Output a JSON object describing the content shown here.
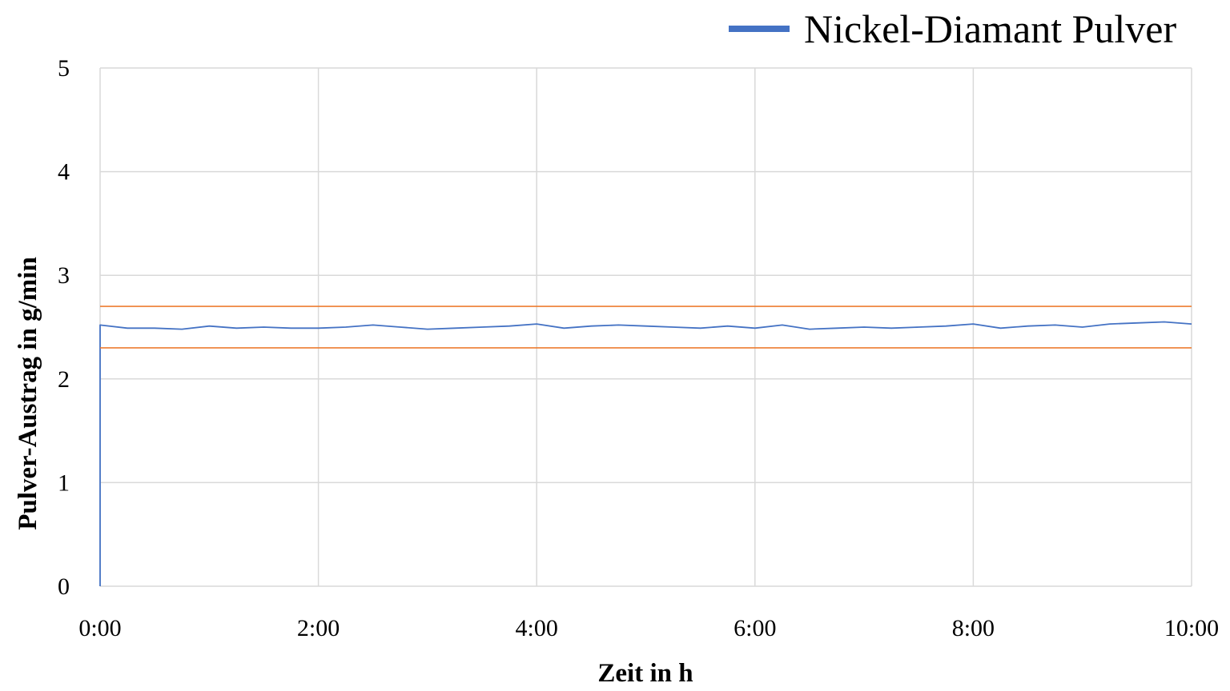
{
  "chart_data": {
    "type": "line",
    "title": "",
    "xlabel": "Zeit in h",
    "ylabel": "Pulver-Austrag in g/min",
    "x_unit": "h:mm",
    "xlim": [
      0,
      10
    ],
    "ylim": [
      0,
      5
    ],
    "x_ticks": [
      "0:00",
      "2:00",
      "4:00",
      "6:00",
      "8:00",
      "10:00"
    ],
    "y_ticks": [
      "0",
      "1",
      "2",
      "3",
      "4",
      "5"
    ],
    "grid": true,
    "legend_position": "top-right",
    "series": [
      {
        "name": "Nickel-Diamant Pulver",
        "color": "#4472C4",
        "x": [
          "0:00",
          "0:15",
          "0:30",
          "0:45",
          "1:00",
          "1:15",
          "1:30",
          "1:45",
          "2:00",
          "2:15",
          "2:30",
          "2:45",
          "3:00",
          "3:15",
          "3:30",
          "3:45",
          "4:00",
          "4:15",
          "4:30",
          "4:45",
          "5:00",
          "5:15",
          "5:30",
          "5:45",
          "6:00",
          "6:15",
          "6:30",
          "6:45",
          "7:00",
          "7:15",
          "7:30",
          "7:45",
          "8:00",
          "8:15",
          "8:30",
          "8:45",
          "9:00",
          "9:15",
          "9:30",
          "9:45",
          "10:00"
        ],
        "y": [
          2.52,
          2.49,
          2.49,
          2.48,
          2.51,
          2.49,
          2.5,
          2.49,
          2.49,
          2.5,
          2.52,
          2.5,
          2.48,
          2.49,
          2.5,
          2.51,
          2.53,
          2.49,
          2.51,
          2.52,
          2.51,
          2.5,
          2.49,
          2.51,
          2.49,
          2.52,
          2.48,
          2.49,
          2.5,
          2.49,
          2.5,
          2.51,
          2.53,
          2.49,
          2.51,
          2.52,
          2.5,
          2.53,
          2.54,
          2.55,
          2.53
        ]
      },
      {
        "color": "#ED7D31",
        "x": [
          "0:00",
          "10:00"
        ],
        "y": [
          2.7,
          2.7
        ]
      },
      {
        "color": "#ED7D31",
        "x": [
          "0:00",
          "10:00"
        ],
        "y": [
          2.3,
          2.3
        ]
      }
    ]
  }
}
